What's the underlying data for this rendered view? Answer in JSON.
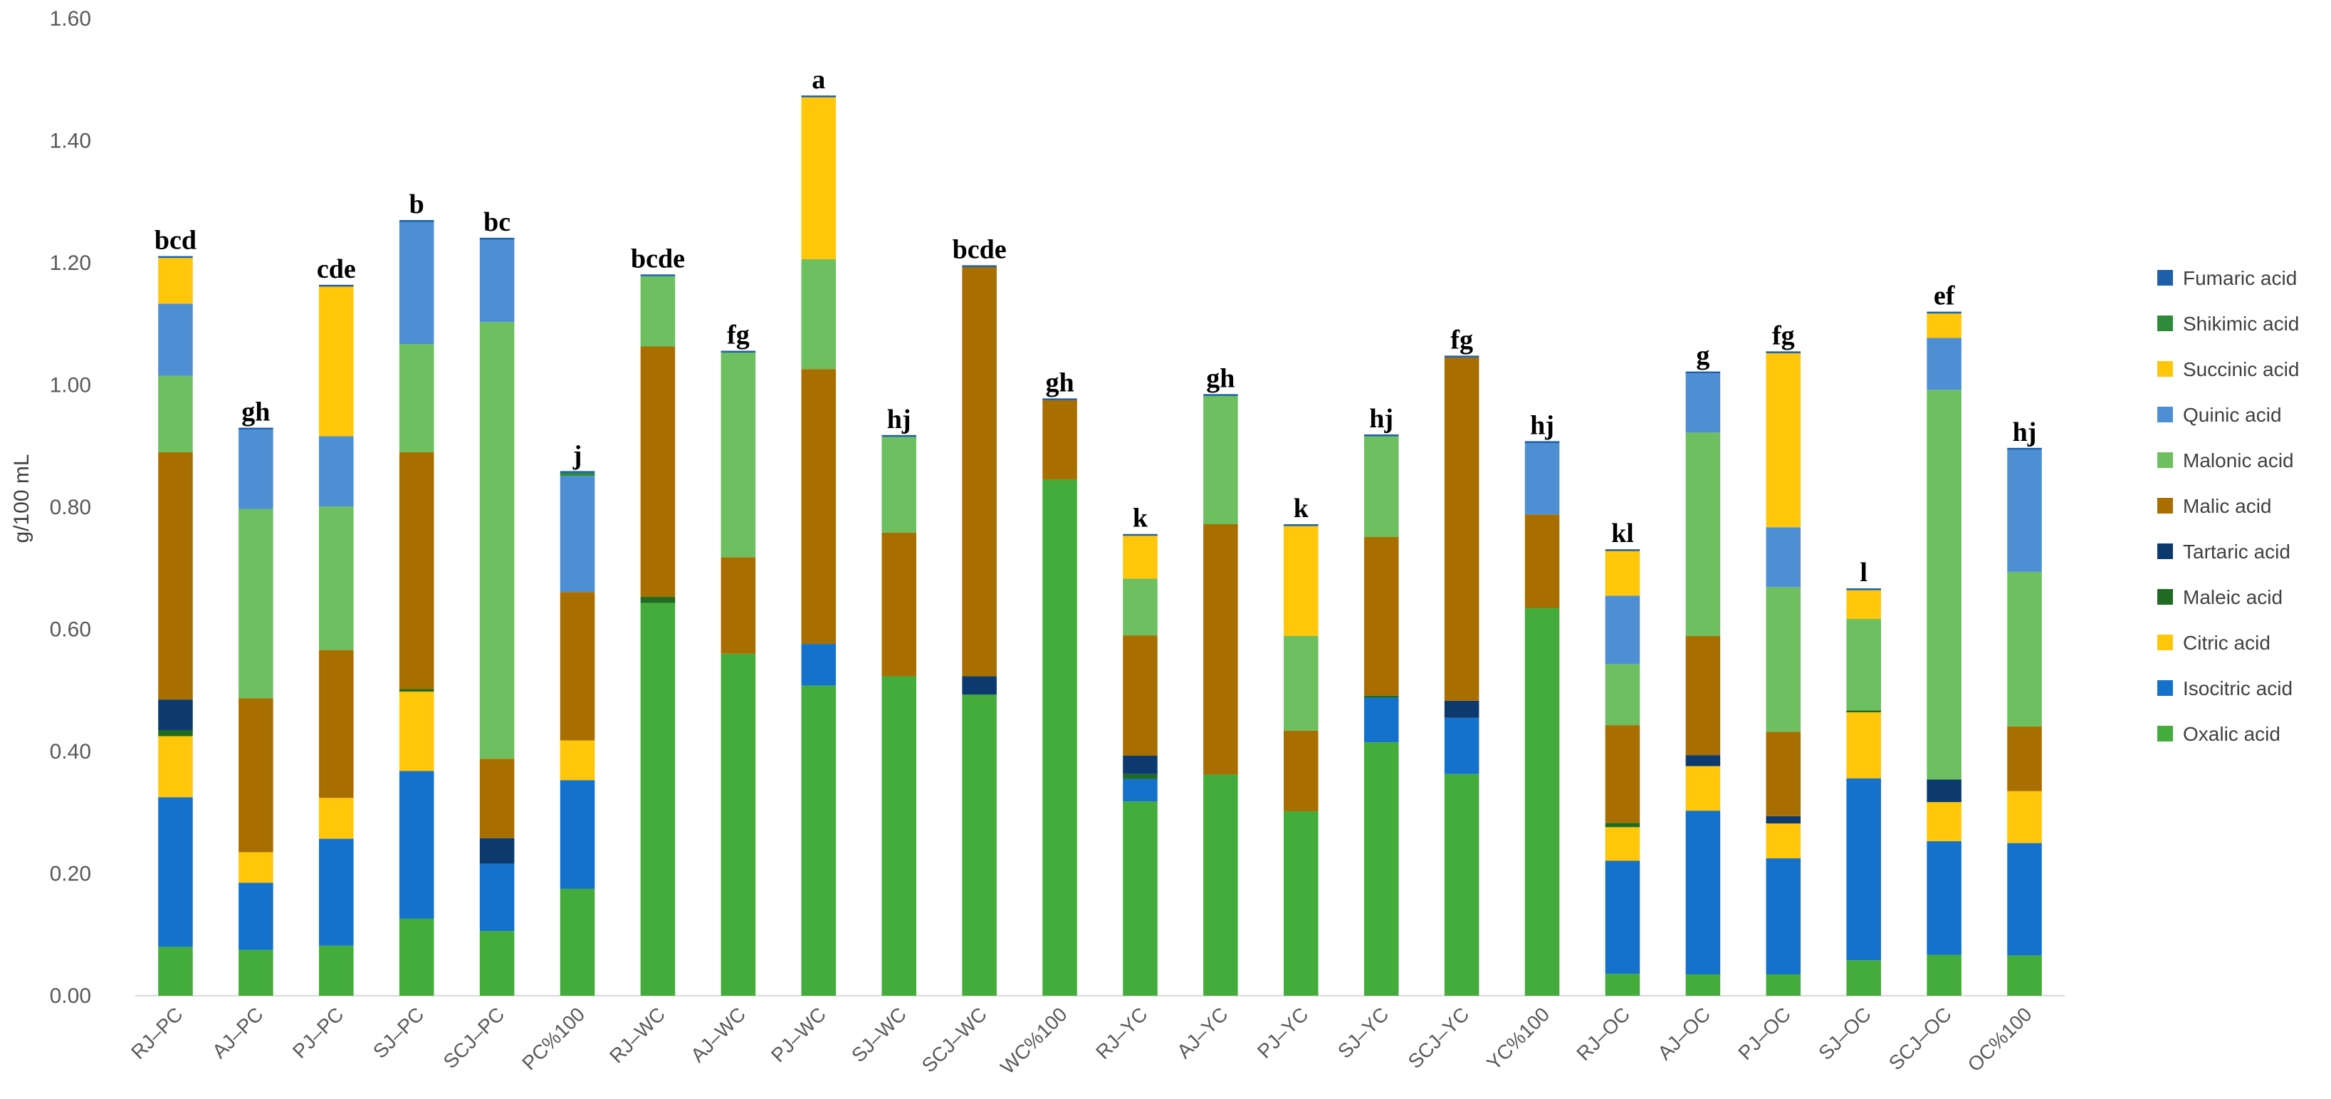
{
  "chart_data": {
    "type": "bar",
    "stacked": true,
    "title": "",
    "xlabel": "",
    "ylabel": "g/100 mL",
    "ylim": [
      0,
      1.6
    ],
    "y_ticks": [
      "0.00",
      "0.20",
      "0.40",
      "0.60",
      "0.80",
      "1.00",
      "1.20",
      "1.40",
      "1.60"
    ],
    "grid": false,
    "legend_position": "right",
    "categories": [
      "RJ–PC",
      "AJ–PC",
      "PJ–PC",
      "SJ–PC",
      "SCJ–PC",
      "PC%100",
      "RJ–WC",
      "AJ–WC",
      "PJ–WC",
      "SJ–WC",
      "SCJ–WC",
      "WC%100",
      "RJ–YC",
      "AJ–YC",
      "PJ–YC",
      "SJ–YC",
      "SCJ–YC",
      "YC%100",
      "RJ–OC",
      "AJ–OC",
      "PJ–OC",
      "SJ–OC",
      "SCJ–OC",
      "OC%100"
    ],
    "significance": [
      "bcd",
      "gh",
      "cde",
      "b",
      "bc",
      "j",
      "bcde",
      "fg",
      "a",
      "hj",
      "bcde",
      "gh",
      "k",
      "gh",
      "k",
      "hj",
      "fg",
      "hj",
      "kl",
      "g",
      "fg",
      "l",
      "ef",
      "hj"
    ],
    "series": [
      {
        "name": "Oxalic acid",
        "color": "#43AC3A",
        "values": [
          0.08,
          0.075,
          0.082,
          0.126,
          0.106,
          0.175,
          0.643,
          0.56,
          0.508,
          0.523,
          0.493,
          0.845,
          0.318,
          0.362,
          0.302,
          0.415,
          0.363,
          0.635,
          0.036,
          0.035,
          0.035,
          0.058,
          0.067,
          0.066
        ]
      },
      {
        "name": "Isocitric acid",
        "color": "#1472CC",
        "values": [
          0.245,
          0.11,
          0.175,
          0.242,
          0.11,
          0.178,
          0.0,
          0.0,
          0.068,
          0.0,
          0.0,
          0.0,
          0.037,
          0.0,
          0.0,
          0.073,
          0.092,
          0.0,
          0.185,
          0.268,
          0.19,
          0.298,
          0.186,
          0.184
        ]
      },
      {
        "name": "Citric acid",
        "color": "#FFC60A",
        "values": [
          0.1,
          0.05,
          0.067,
          0.13,
          0.0,
          0.065,
          0.0,
          0.0,
          0.0,
          0.0,
          0.0,
          0.0,
          0.0,
          0.0,
          0.0,
          0.0,
          0.0,
          0.0,
          0.055,
          0.073,
          0.057,
          0.108,
          0.064,
          0.085
        ]
      },
      {
        "name": "Maleic acid",
        "color": "#1F6B24",
        "values": [
          0.01,
          0.0,
          0.0,
          0.004,
          0.0,
          0.0,
          0.01,
          0.0,
          0.0,
          0.0,
          0.0,
          0.0,
          0.008,
          0.0,
          0.0,
          0.003,
          0.0,
          0.0,
          0.007,
          0.0,
          0.0,
          0.003,
          0.0,
          0.0
        ]
      },
      {
        "name": "Tartaric acid",
        "color": "#0C3A6E",
        "values": [
          0.05,
          0.0,
          0.0,
          0.0,
          0.042,
          0.0,
          0.0,
          0.0,
          0.0,
          0.0,
          0.03,
          0.0,
          0.03,
          0.0,
          0.0,
          0.0,
          0.028,
          0.0,
          0.0,
          0.018,
          0.012,
          0.0,
          0.037,
          0.0
        ]
      },
      {
        "name": "Malic acid",
        "color": "#A86F00",
        "values": [
          0.405,
          0.252,
          0.242,
          0.388,
          0.13,
          0.243,
          0.41,
          0.158,
          0.45,
          0.235,
          0.67,
          0.13,
          0.197,
          0.41,
          0.132,
          0.26,
          0.562,
          0.153,
          0.16,
          0.195,
          0.138,
          0.0,
          0.0,
          0.106
        ]
      },
      {
        "name": "Malonic acid",
        "color": "#6DBF5F",
        "values": [
          0.125,
          0.31,
          0.235,
          0.177,
          0.715,
          0.0,
          0.115,
          0.335,
          0.18,
          0.157,
          0.0,
          0.0,
          0.093,
          0.21,
          0.155,
          0.165,
          0.0,
          0.0,
          0.1,
          0.333,
          0.237,
          0.15,
          0.638,
          0.253
        ]
      },
      {
        "name": "Quinic acid",
        "color": "#4E8FD4",
        "values": [
          0.118,
          0.13,
          0.115,
          0.2,
          0.135,
          0.19,
          0.0,
          0.0,
          0.0,
          0.0,
          0.0,
          0.0,
          0.0,
          0.0,
          0.0,
          0.0,
          0.0,
          0.117,
          0.112,
          0.097,
          0.098,
          0.0,
          0.085,
          0.2
        ]
      },
      {
        "name": "Succinic acid",
        "color": "#FFC60A",
        "values": [
          0.075,
          0.0,
          0.245,
          0.0,
          0.0,
          0.0,
          0.0,
          0.0,
          0.265,
          0.0,
          0.0,
          0.0,
          0.07,
          0.0,
          0.18,
          0.0,
          0.0,
          0.0,
          0.073,
          0.0,
          0.285,
          0.047,
          0.04,
          0.0
        ]
      },
      {
        "name": "Shikimic acid",
        "color": "#2E8B3A",
        "values": [
          0.0,
          0.0,
          0.0,
          0.0,
          0.0,
          0.005,
          0.0,
          0.0,
          0.0,
          0.0,
          0.0,
          0.0,
          0.0,
          0.0,
          0.0,
          0.0,
          0.0,
          0.0,
          0.0,
          0.0,
          0.0,
          0.0,
          0.0,
          0.0
        ]
      },
      {
        "name": "Fumaric acid",
        "color": "#1D5FA8",
        "values": [
          0.003,
          0.003,
          0.003,
          0.003,
          0.003,
          0.003,
          0.003,
          0.003,
          0.003,
          0.003,
          0.003,
          0.003,
          0.003,
          0.003,
          0.003,
          0.003,
          0.003,
          0.003,
          0.003,
          0.003,
          0.003,
          0.003,
          0.003,
          0.003
        ]
      }
    ],
    "legend_order": [
      "Fumaric acid",
      "Shikimic acid",
      "Succinic acid",
      "Quinic acid",
      "Malonic acid",
      "Malic acid",
      "Tartaric acid",
      "Maleic acid",
      "Citric acid",
      "Isocitric acid",
      "Oxalic acid"
    ]
  }
}
